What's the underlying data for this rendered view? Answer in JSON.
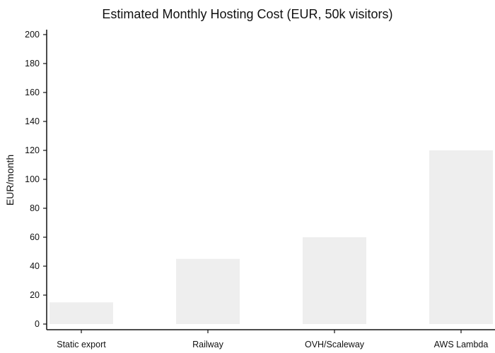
{
  "chart_data": {
    "type": "bar",
    "title": "Estimated Monthly Hosting Cost (EUR, 50k visitors)",
    "xlabel": "",
    "ylabel": "EUR/month",
    "categories": [
      "Static export",
      "Railway",
      "OVH/Scaleway",
      "AWS Lambda"
    ],
    "values": [
      15,
      45,
      60,
      120
    ],
    "ylim": [
      0,
      200
    ],
    "yticks": [
      0,
      20,
      40,
      60,
      80,
      100,
      120,
      140,
      160,
      180,
      200
    ],
    "grid": false,
    "bar_color": "#eeeeee"
  }
}
